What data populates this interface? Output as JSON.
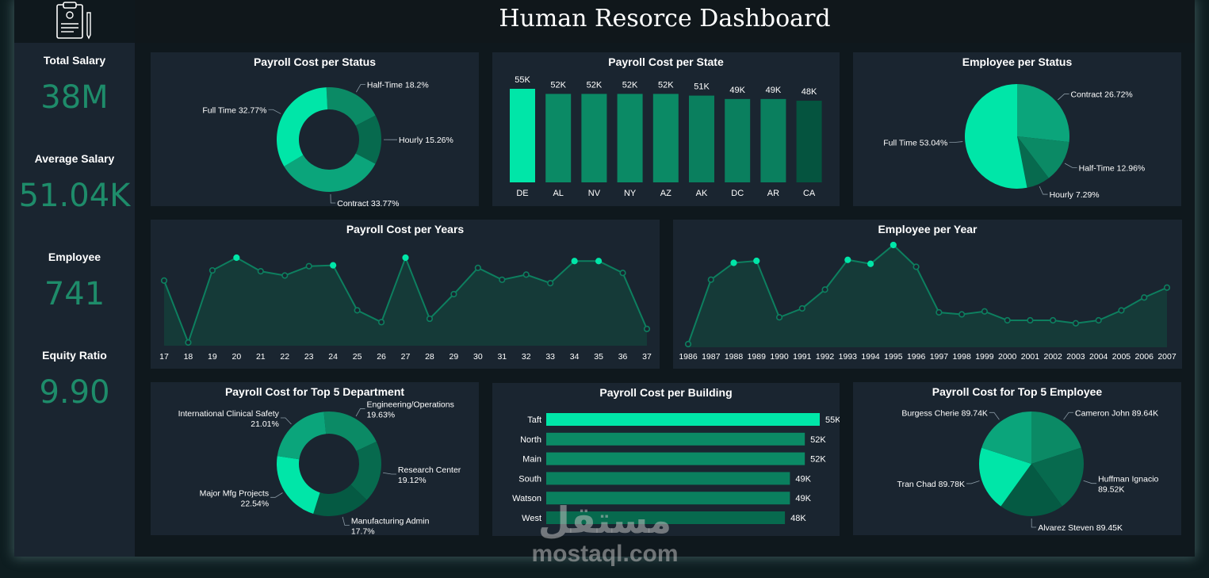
{
  "header": {
    "title": "Human Resorce Dashboard",
    "logo_icon": "clipboard-icon"
  },
  "kpis": [
    {
      "label": "Total Salary",
      "value": "38M"
    },
    {
      "label": "Average Salary",
      "value": "51.04K"
    },
    {
      "label": "Employee",
      "value": "741"
    },
    {
      "label": "Equity Ratio",
      "value": "9.90"
    }
  ],
  "watermark": {
    "arabic": "مستقل",
    "latin": "mostaql.com"
  },
  "colors": {
    "bright": "#00e6a8",
    "mid": "#0b8a65",
    "dark": "#076a4e",
    "darkest": "#055a43",
    "line": "#0d7f5f",
    "panel": "#1a2530",
    "kpi": "#1e8c6a"
  },
  "chart_data": [
    {
      "id": "payroll_status",
      "type": "pie",
      "donut": true,
      "title": "Payroll Cost per Status",
      "slices": [
        {
          "label": "Half-Time",
          "value": 18.2,
          "display": "Half-Time 18.2%",
          "color": "#0b8a65"
        },
        {
          "label": "Hourly",
          "value": 15.26,
          "display": "Hourly 15.26%",
          "color": "#076a4e"
        },
        {
          "label": "Contract",
          "value": 33.77,
          "display": "Contract 33.77%",
          "color": "#0ba57b"
        },
        {
          "label": "Full Time",
          "value": 32.77,
          "display": "Full Time 32.77%",
          "color": "#00e6a8"
        }
      ]
    },
    {
      "id": "payroll_state",
      "type": "bar",
      "title": "Payroll Cost per State",
      "categories": [
        "DE",
        "AL",
        "NV",
        "NY",
        "AZ",
        "AK",
        "DC",
        "AR",
        "CA"
      ],
      "values": [
        55,
        52,
        52,
        52,
        52,
        51,
        49,
        49,
        48
      ],
      "labels": [
        "55K",
        "52K",
        "52K",
        "52K",
        "52K",
        "51K",
        "49K",
        "49K",
        "48K"
      ],
      "colors": [
        "#00e6a8",
        "#0b8a65",
        "#0b8a65",
        "#0b8a65",
        "#0b8a65",
        "#0a7f5e",
        "#0a7f5e",
        "#0a7f5e",
        "#05543f"
      ]
    },
    {
      "id": "employee_status",
      "type": "pie",
      "title": "Employee per Status",
      "slices": [
        {
          "label": "Contract",
          "value": 26.72,
          "display": "Contract 26.72%",
          "color": "#0ba57b"
        },
        {
          "label": "Half-Time",
          "value": 12.96,
          "display": "Half-Time 12.96%",
          "color": "#0b8a65"
        },
        {
          "label": "Hourly",
          "value": 7.29,
          "display": "Hourly 7.29%",
          "color": "#076a4e"
        },
        {
          "label": "Full Time",
          "value": 53.04,
          "display": "Full Time 53.04%",
          "color": "#00e6a8"
        }
      ]
    },
    {
      "id": "payroll_years",
      "type": "area",
      "title": "Payroll Cost per Years",
      "x": [
        "17",
        "18",
        "19",
        "20",
        "21",
        "22",
        "23",
        "24",
        "25",
        "26",
        "27",
        "28",
        "29",
        "30",
        "31",
        "32",
        "33",
        "34",
        "35",
        "36",
        "37"
      ],
      "values": [
        0.73,
        0.0,
        0.85,
        1.0,
        0.84,
        0.79,
        0.9,
        0.91,
        0.38,
        0.24,
        1.0,
        0.28,
        0.57,
        0.88,
        0.74,
        0.8,
        0.7,
        0.96,
        0.96,
        0.82,
        0.16
      ],
      "highlight": [
        3,
        7,
        10,
        17,
        18
      ]
    },
    {
      "id": "employee_year",
      "type": "area",
      "title": "Employee per Year",
      "x": [
        "1986",
        "1987",
        "1988",
        "1989",
        "1990",
        "1991",
        "1992",
        "1993",
        "1994",
        "1995",
        "1996",
        "1997",
        "1998",
        "1999",
        "2000",
        "2001",
        "2002",
        "2003",
        "2004",
        "2005",
        "2006",
        "2007"
      ],
      "values": [
        0.0,
        0.65,
        0.82,
        0.84,
        0.27,
        0.36,
        0.55,
        0.85,
        0.81,
        1.0,
        0.78,
        0.32,
        0.3,
        0.33,
        0.24,
        0.24,
        0.24,
        0.21,
        0.24,
        0.34,
        0.47,
        0.57
      ],
      "highlight": [
        2,
        3,
        7,
        8,
        9
      ]
    },
    {
      "id": "payroll_dept",
      "type": "pie",
      "donut": true,
      "title": "Payroll Cost for Top 5 Department",
      "slices": [
        {
          "label": "Engineering/Operations",
          "value": 19.63,
          "display": [
            "Engineering/Operations",
            "19.63%"
          ],
          "color": "#0b8a65"
        },
        {
          "label": "Research Center",
          "value": 19.12,
          "display": [
            "Research Center",
            "19.12%"
          ],
          "color": "#076a4e"
        },
        {
          "label": "Manufacturing Admin",
          "value": 17.7,
          "display": [
            "Manufacturing Admin",
            "17.7%"
          ],
          "color": "#055a43"
        },
        {
          "label": "Major Mfg Projects",
          "value": 22.54,
          "display": [
            "Major Mfg Projects",
            "22.54%"
          ],
          "color": "#00e6a8"
        },
        {
          "label": "International Clinical Safety",
          "value": 21.01,
          "display": [
            "International Clinical Safety",
            "21.01%"
          ],
          "color": "#0ba57b"
        }
      ]
    },
    {
      "id": "payroll_building",
      "type": "bar",
      "orientation": "horizontal",
      "title": "Payroll Cost per Building",
      "categories": [
        "Taft",
        "North",
        "Main",
        "South",
        "Watson",
        "West"
      ],
      "values": [
        55,
        52,
        52,
        49,
        49,
        48
      ],
      "labels": [
        "55K",
        "52K",
        "52K",
        "49K",
        "49K",
        "48K"
      ],
      "colors": [
        "#00e6a8",
        "#0b8a65",
        "#0b8a65",
        "#0a7f5e",
        "#0a7f5e",
        "#076a4e"
      ]
    },
    {
      "id": "payroll_employee",
      "type": "pie",
      "title": "Payroll Cost for Top 5 Employee",
      "slices": [
        {
          "label": "Cameron John",
          "value": 89.64,
          "display": [
            "Cameron John 89.64K"
          ],
          "color": "#0b8a65"
        },
        {
          "label": "Huffman Ignacio",
          "value": 89.52,
          "display": [
            "Huffman Ignacio",
            "89.52K"
          ],
          "color": "#076a4e"
        },
        {
          "label": "Alvarez Steven",
          "value": 89.45,
          "display": [
            "Alvarez Steven 89.45K"
          ],
          "color": "#055a43"
        },
        {
          "label": "Tran Chad",
          "value": 89.78,
          "display": [
            "Tran Chad 89.78K"
          ],
          "color": "#00e6a8"
        },
        {
          "label": "Burgess Cherie",
          "value": 89.74,
          "display": [
            "Burgess Cherie 89.74K"
          ],
          "color": "#0ba57b"
        }
      ]
    }
  ]
}
